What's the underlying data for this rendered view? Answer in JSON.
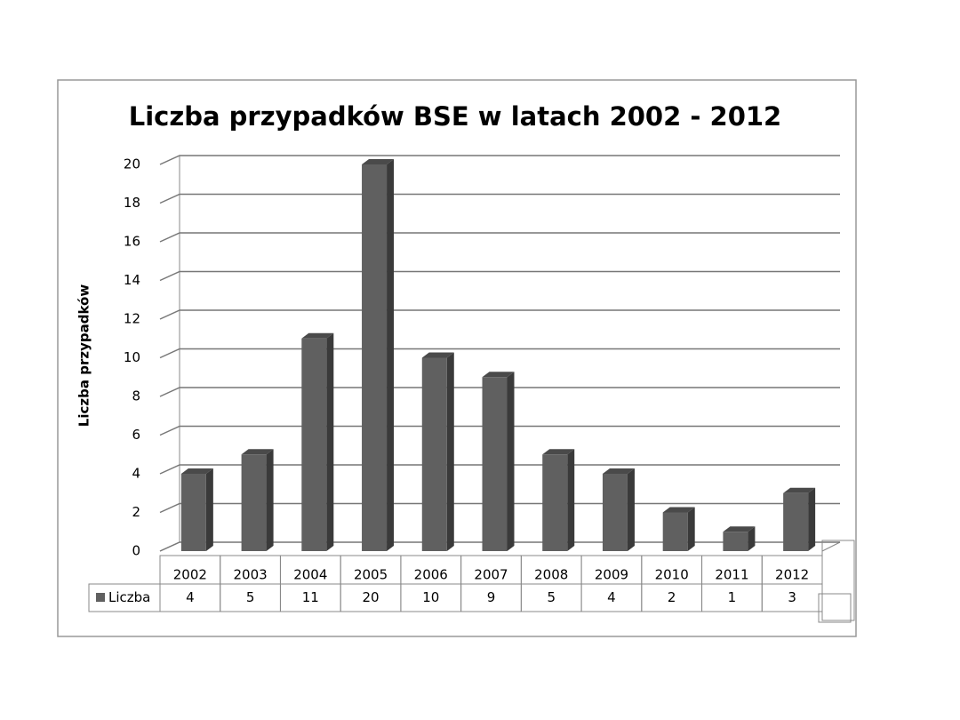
{
  "chart_data": {
    "type": "bar",
    "title": "Liczba przypadków BSE w latach 2002 - 2012",
    "ylabel": "Liczba przypadków",
    "categories": [
      "2002",
      "2003",
      "2004",
      "2005",
      "2006",
      "2007",
      "2008",
      "2009",
      "2010",
      "2011",
      "2012"
    ],
    "series": [
      {
        "name": "Liczba",
        "color": "#606060",
        "values": [
          4,
          5,
          11,
          20,
          10,
          9,
          5,
          4,
          2,
          1,
          3
        ]
      }
    ],
    "ylim": [
      0,
      20
    ],
    "yticks": [
      0,
      2,
      4,
      6,
      8,
      10,
      12,
      14,
      16,
      18,
      20
    ],
    "grid": true
  }
}
